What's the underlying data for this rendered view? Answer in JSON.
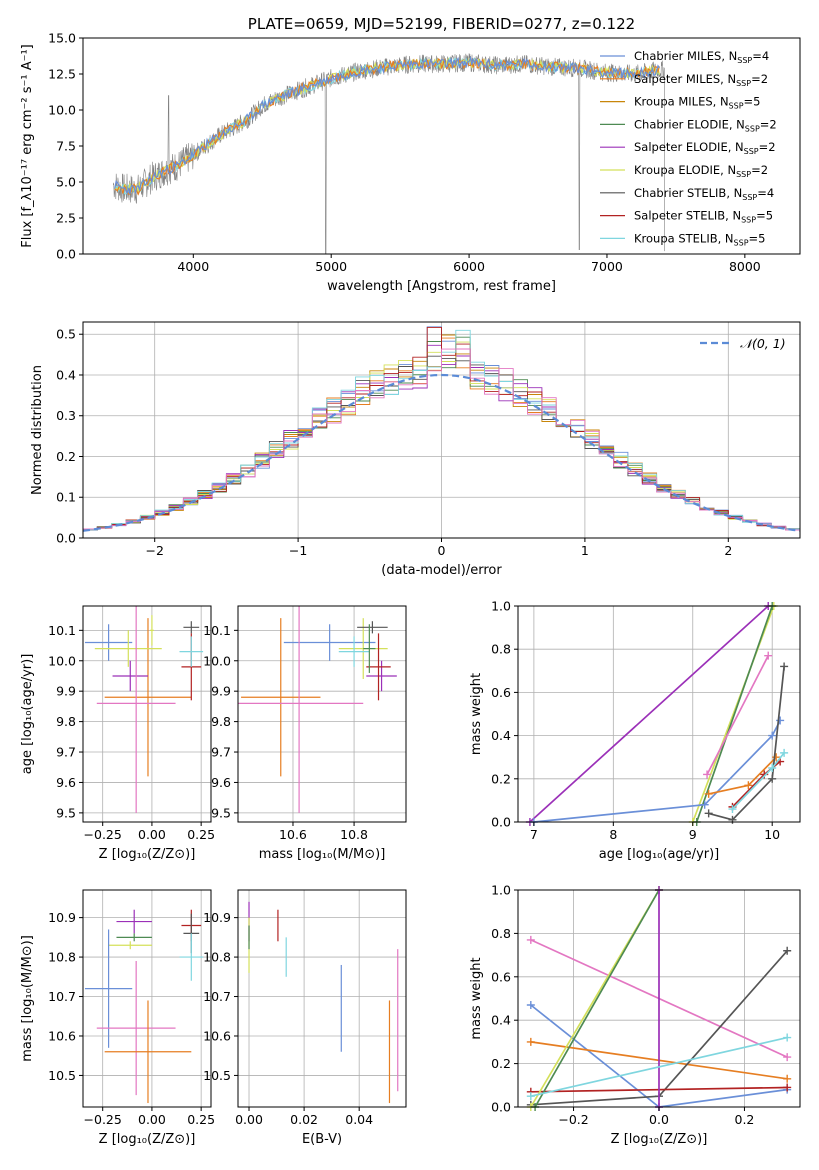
{
  "colors": {
    "chabrier_miles": "#6a8fd8",
    "salpeter_miles": "#e67e22",
    "kroupa_miles": "#c8860a",
    "chabrier_elodie": "#4e8a52",
    "salpeter_elodie": "#9b30b8",
    "kroupa_elodie": "#d4e05a",
    "chabrier_stelib": "#555555",
    "salpeter_stelib": "#b22222",
    "kroupa_stelib": "#7fd6df",
    "pink": "#e377c2",
    "data": "#808080",
    "gauss": "#5b8bd6"
  },
  "chart_data": [
    {
      "id": "spectrum",
      "type": "line",
      "title": "PLATE=0659, MJD=52199, FIBERID=0277, z=0.122",
      "xlabel": "wavelength [Angstrom, rest frame]",
      "ylabel": "Flux [f_λ10⁻¹⁷ erg cm⁻² s⁻¹ A⁻¹]",
      "xlim": [
        3200,
        8400
      ],
      "ylim": [
        0,
        15
      ],
      "xticks": [
        "4000",
        "5000",
        "6000",
        "7000",
        "8000"
      ],
      "yticks": [
        "0.0",
        "2.5",
        "5.0",
        "7.5",
        "10.0",
        "12.5",
        "15.0"
      ],
      "grid": false,
      "legend_position": "top-right",
      "legend": [
        {
          "label": "Chabrier MILES, N",
          "n": "4"
        },
        {
          "label": "Salpeter MILES, N",
          "n": "2"
        },
        {
          "label": "Kroupa MILES, N",
          "n": "5"
        },
        {
          "label": "Chabrier ELODIE, N",
          "n": "2"
        },
        {
          "label": "Salpeter ELODIE, N",
          "n": "2"
        },
        {
          "label": "Kroupa ELODIE, N",
          "n": "2"
        },
        {
          "label": "Chabrier STELIB, N",
          "n": "4"
        },
        {
          "label": "Salpeter STELIB, N",
          "n": "5"
        },
        {
          "label": "Kroupa STELIB, N",
          "n": "5"
        }
      ],
      "legend_sub": "SSP",
      "continuum": {
        "x": [
          3400,
          3500,
          3600,
          3700,
          3800,
          3900,
          4000,
          4100,
          4200,
          4300,
          4400,
          4500,
          4600,
          4800,
          5000,
          5200,
          5400,
          5600,
          5800,
          6000,
          6200,
          6400,
          6600,
          6800,
          7000,
          7200,
          7400
        ],
        "y": [
          4.9,
          4.5,
          4.5,
          5.3,
          5.8,
          6.2,
          6.9,
          7.6,
          8.3,
          8.8,
          9.4,
          10.3,
          10.8,
          11.5,
          12.2,
          12.7,
          13.0,
          13.2,
          13.2,
          13.3,
          13.1,
          13.2,
          13.0,
          12.9,
          12.6,
          12.5,
          12.8
        ]
      }
    },
    {
      "id": "residuals",
      "type": "line",
      "xlabel": "(data-model)/error",
      "ylabel": "Normed distribution",
      "xlim": [
        -2.5,
        2.5
      ],
      "ylim": [
        0,
        0.53
      ],
      "xticks": [
        "−2",
        "−1",
        "0",
        "1",
        "2"
      ],
      "yticks": [
        "0.0",
        "0.1",
        "0.2",
        "0.3",
        "0.4",
        "0.5"
      ],
      "grid": true,
      "legend_position": "top-right",
      "legend": "𝒩(0, 1)",
      "gaussian": {
        "mean": 0,
        "sigma": 1,
        "normalization": 0.4
      }
    },
    {
      "id": "age_vs_z",
      "type": "scatter",
      "xlabel": "Z [log₁₀(Z/Z⊙)]",
      "ylabel": "age  [log₁₀(age/yr)]",
      "xlim": [
        -0.35,
        0.3
      ],
      "ylim": [
        9.47,
        10.18
      ],
      "xticks": [
        "−0.25",
        "0.00",
        "0.25"
      ],
      "yticks": [
        "9.5",
        "9.6",
        "9.7",
        "9.8",
        "9.9",
        "10.0",
        "10.1"
      ],
      "grid": true,
      "points": [
        {
          "c": "chabrier_miles",
          "x": -0.22,
          "xe": 0.12,
          "y": 10.06,
          "ye": 0.06
        },
        {
          "c": "salpeter_miles",
          "x": -0.02,
          "xe": 0.22,
          "y": 9.88,
          "ye": 0.26
        },
        {
          "c": "kroupa_elodie",
          "x": -0.12,
          "xe": 0.17,
          "y": 10.04,
          "ye": 0.06
        },
        {
          "c": "salpeter_elodie",
          "x": -0.11,
          "xe": 0.09,
          "y": 9.95,
          "ye": 0.05
        },
        {
          "c": "pink",
          "x": -0.08,
          "xe": 0.2,
          "y": 9.86,
          "ye": 0.36
        },
        {
          "c": "chabrier_stelib",
          "x": 0.2,
          "xe": 0.04,
          "y": 10.11,
          "ye": 0.02
        },
        {
          "c": "salpeter_stelib",
          "x": 0.2,
          "xe": 0.05,
          "y": 9.98,
          "ye": 0.11
        },
        {
          "c": "kroupa_stelib",
          "x": 0.2,
          "xe": 0.06,
          "y": 10.03,
          "ye": 0.05
        },
        {
          "c": "kroupa_elodie",
          "x": 0.0,
          "xe": 0.01,
          "y": 10.1,
          "ye": 0.05
        }
      ]
    },
    {
      "id": "age_vs_mass",
      "type": "scatter",
      "xlabel": "mass [log₁₀(M/M⊙)]",
      "ylabel": "",
      "xlim": [
        10.42,
        10.97
      ],
      "ylim": [
        9.47,
        10.18
      ],
      "xticks": [
        "10.6",
        "10.8"
      ],
      "yticks": [
        "9.5",
        "9.6",
        "9.7",
        "9.8",
        "9.9",
        "10.0",
        "10.1"
      ],
      "grid": true,
      "points": [
        {
          "c": "chabrier_miles",
          "x": 10.72,
          "xe": 0.15,
          "y": 10.06,
          "ye": 0.06
        },
        {
          "c": "salpeter_miles",
          "x": 10.56,
          "xe": 0.13,
          "y": 9.88,
          "ye": 0.26
        },
        {
          "c": "pink",
          "x": 10.62,
          "xe": 0.21,
          "y": 9.86,
          "ye": 0.36
        },
        {
          "c": "kroupa_elodie",
          "x": 10.83,
          "xe": 0.08,
          "y": 10.04,
          "ye": 0.1
        },
        {
          "c": "salpeter_elodie",
          "x": 10.89,
          "xe": 0.05,
          "y": 9.95,
          "ye": 0.05
        },
        {
          "c": "chabrier_stelib",
          "x": 10.86,
          "xe": 0.05,
          "y": 10.11,
          "ye": 0.02
        },
        {
          "c": "salpeter_stelib",
          "x": 10.88,
          "xe": 0.04,
          "y": 9.98,
          "ye": 0.11
        },
        {
          "c": "kroupa_stelib",
          "x": 10.8,
          "xe": 0.05,
          "y": 10.03,
          "ye": 0.05
        },
        {
          "c": "chabrier_elodie",
          "x": 10.85,
          "xe": 0.02,
          "y": 10.04,
          "ye": 0.08
        }
      ]
    },
    {
      "id": "weight_vs_age",
      "type": "line",
      "xlabel": "age  [log₁₀(age/yr)]",
      "ylabel": "mass weight",
      "xlim": [
        6.8,
        10.35
      ],
      "ylim": [
        0,
        1.0
      ],
      "xticks": [
        "7",
        "8",
        "9",
        "10"
      ],
      "yticks": [
        "0.0",
        "0.2",
        "0.4",
        "0.6",
        "0.8",
        "1.0"
      ],
      "grid": true,
      "series": [
        {
          "c": "salpeter_elodie",
          "x": [
            6.95,
            9.95
          ],
          "y": [
            0.0,
            1.0
          ]
        },
        {
          "c": "kroupa_elodie",
          "x": [
            9.0,
            10.02
          ],
          "y": [
            0.0,
            1.0
          ]
        },
        {
          "c": "chabrier_elodie",
          "x": [
            9.05,
            10.0
          ],
          "y": [
            0.0,
            1.0
          ]
        },
        {
          "c": "chabrier_miles",
          "x": [
            7.0,
            9.15,
            10.0,
            10.1
          ],
          "y": [
            0.0,
            0.08,
            0.4,
            0.47
          ]
        },
        {
          "c": "pink",
          "x": [
            9.18,
            9.95
          ],
          "y": [
            0.22,
            0.77
          ]
        },
        {
          "c": "salpeter_miles",
          "x": [
            9.2,
            9.7,
            10.05
          ],
          "y": [
            0.13,
            0.17,
            0.3
          ]
        },
        {
          "c": "chabrier_stelib",
          "x": [
            9.2,
            9.5,
            10.0,
            10.15
          ],
          "y": [
            0.04,
            0.01,
            0.2,
            0.72
          ]
        },
        {
          "c": "salpeter_stelib",
          "x": [
            9.5,
            9.9,
            10.1
          ],
          "y": [
            0.07,
            0.22,
            0.28
          ]
        },
        {
          "c": "kroupa_stelib",
          "x": [
            9.5,
            10.0,
            10.15
          ],
          "y": [
            0.06,
            0.25,
            0.32
          ]
        }
      ]
    },
    {
      "id": "mass_vs_z",
      "type": "scatter",
      "xlabel": "Z [log₁₀(Z/Z⊙)]",
      "ylabel": "mass [log₁₀(M/M⊙)]",
      "xlim": [
        -0.35,
        0.3
      ],
      "ylim": [
        10.42,
        10.97
      ],
      "xticks": [
        "−0.25",
        "0.00",
        "0.25"
      ],
      "yticks": [
        "10.5",
        "10.6",
        "10.7",
        "10.8",
        "10.9"
      ],
      "grid": true,
      "points": [
        {
          "c": "salpeter_elodie",
          "x": -0.09,
          "xe": 0.09,
          "y": 10.89,
          "ye": 0.03
        },
        {
          "c": "chabrier_elodie",
          "x": -0.09,
          "xe": 0.09,
          "y": 10.85,
          "ye": 0.01
        },
        {
          "c": "kroupa_elodie",
          "x": -0.11,
          "xe": 0.11,
          "y": 10.83,
          "ye": 0.01
        },
        {
          "c": "chabrier_miles",
          "x": -0.22,
          "xe": 0.12,
          "y": 10.72,
          "ye": 0.15
        },
        {
          "c": "pink",
          "x": -0.08,
          "xe": 0.2,
          "y": 10.62,
          "ye": 0.17
        },
        {
          "c": "salpeter_miles",
          "x": -0.02,
          "xe": 0.22,
          "y": 10.56,
          "ye": 0.13
        },
        {
          "c": "salpeter_stelib",
          "x": 0.2,
          "xe": 0.05,
          "y": 10.88,
          "ye": 0.04
        },
        {
          "c": "chabrier_stelib",
          "x": 0.2,
          "xe": 0.04,
          "y": 10.86,
          "ye": 0.05
        },
        {
          "c": "kroupa_stelib",
          "x": 0.2,
          "xe": 0.06,
          "y": 10.8,
          "ye": 0.06
        }
      ]
    },
    {
      "id": "mass_vs_ebv",
      "type": "scatter",
      "xlabel": "E(B-V)",
      "ylabel": "",
      "xlim": [
        -0.004,
        0.057
      ],
      "ylim": [
        10.42,
        10.97
      ],
      "xticks": [
        "0.00",
        "0.02",
        "0.04"
      ],
      "yticks": [
        "10.5",
        "10.6",
        "10.7",
        "10.8",
        "10.9"
      ],
      "grid": true,
      "points": [
        {
          "c": "salpeter_elodie",
          "x": 0.0,
          "xe": 0,
          "y": 10.89,
          "ye": 0.05
        },
        {
          "c": "kroupa_elodie",
          "x": 0.0,
          "xe": 0,
          "y": 10.83,
          "ye": 0.07
        },
        {
          "c": "chabrier_elodie",
          "x": 0.0,
          "xe": 0,
          "y": 10.85,
          "ye": 0.03
        },
        {
          "c": "salpeter_stelib",
          "x": 0.0105,
          "xe": 0,
          "y": 10.88,
          "ye": 0.04
        },
        {
          "c": "kroupa_stelib",
          "x": 0.0135,
          "xe": 0,
          "y": 10.8,
          "ye": 0.05
        },
        {
          "c": "chabrier_miles",
          "x": 0.0335,
          "xe": 0,
          "y": 10.67,
          "ye": 0.11
        },
        {
          "c": "salpeter_miles",
          "x": 0.051,
          "xe": 0,
          "y": 10.56,
          "ye": 0.13
        },
        {
          "c": "pink",
          "x": 0.054,
          "xe": 0,
          "y": 10.64,
          "ye": 0.18
        }
      ]
    },
    {
      "id": "weight_vs_z",
      "type": "line",
      "xlabel": "Z [log₁₀(Z/Z⊙)]",
      "ylabel": "mass weight",
      "xlim": [
        -0.33,
        0.33
      ],
      "ylim": [
        0,
        1.0
      ],
      "xticks": [
        "−0.2",
        "0.0",
        "0.2"
      ],
      "yticks": [
        "0.0",
        "0.2",
        "0.4",
        "0.6",
        "0.8",
        "1.0"
      ],
      "grid": true,
      "series": [
        {
          "c": "pink",
          "x": [
            -0.3,
            0.3
          ],
          "y": [
            0.77,
            0.23
          ]
        },
        {
          "c": "chabrier_miles",
          "x": [
            -0.3,
            0.0,
            0.3
          ],
          "y": [
            0.47,
            0.0,
            0.08
          ]
        },
        {
          "c": "salpeter_miles",
          "x": [
            -0.3,
            0.3
          ],
          "y": [
            0.3,
            0.13
          ]
        },
        {
          "c": "chabrier_stelib",
          "x": [
            -0.3,
            0.0,
            0.3
          ],
          "y": [
            0.01,
            0.05,
            0.72
          ]
        },
        {
          "c": "salpeter_stelib",
          "x": [
            -0.3,
            0.3
          ],
          "y": [
            0.07,
            0.09
          ]
        },
        {
          "c": "kroupa_elodie",
          "x": [
            -0.3,
            0.0
          ],
          "y": [
            0.0,
            1.0
          ]
        },
        {
          "c": "chabrier_elodie",
          "x": [
            -0.29,
            0.0
          ],
          "y": [
            0.0,
            1.0
          ]
        },
        {
          "c": "salpeter_elodie",
          "x": [
            0.0,
            0.0
          ],
          "y": [
            0.0,
            1.0
          ]
        },
        {
          "c": "kroupa_stelib",
          "x": [
            -0.3,
            0.3
          ],
          "y": [
            0.05,
            0.32
          ]
        }
      ]
    }
  ]
}
